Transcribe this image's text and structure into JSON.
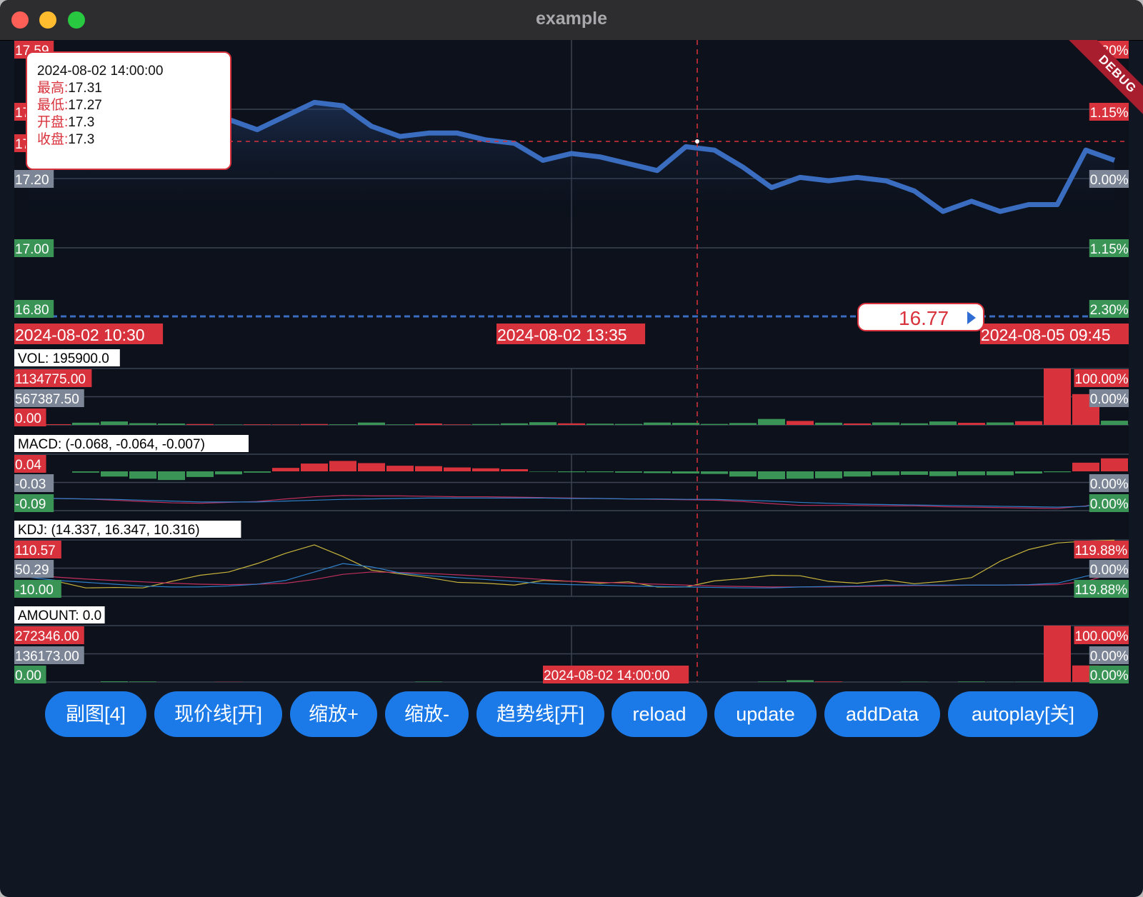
{
  "window": {
    "title": "example"
  },
  "colors": {
    "up": "#d8323c",
    "down": "#3a9456",
    "line": "#3a6cbf",
    "grid": "#3a4353",
    "bg": "#0c111b",
    "gray_label": "#7d8696",
    "k_line": "#c8b43c",
    "d_line": "#c0305e",
    "j_line": "#2f7fc8"
  },
  "main_chart": {
    "price_axis_left": [
      "17.59",
      "17.39",
      "17.30",
      "17.20",
      "17.00",
      "16.80"
    ],
    "percent_axis_right": [
      "2.30%",
      "1.15%",
      "0.00%",
      "1.15%",
      "2.30%"
    ],
    "time_labels": [
      "2024-08-02 10:30",
      "2024-08-02 13:35",
      "2024-08-05 09:45"
    ],
    "current_price": "16.77",
    "prices": [
      17.37,
      17.36,
      17.36,
      17.35,
      17.36,
      17.35,
      17.38,
      17.38,
      17.35,
      17.39,
      17.43,
      17.42,
      17.36,
      17.33,
      17.34,
      17.34,
      17.32,
      17.31,
      17.26,
      17.28,
      17.27,
      17.25,
      17.23,
      17.3,
      17.29,
      17.24,
      17.18,
      17.21,
      17.2,
      17.21,
      17.2,
      17.17,
      17.11,
      17.14,
      17.11,
      17.13,
      17.13,
      17.29,
      17.26
    ],
    "crosshair_price": "17.30"
  },
  "tooltip": {
    "time": "2024-08-02 14:00:00",
    "high_label": "最高:",
    "high": "17.31",
    "low_label": "最低:",
    "low": "17.27",
    "open_label": "开盘:",
    "open": "17.3",
    "close_label": "收盘:",
    "close": "17.3"
  },
  "vol": {
    "header": "VOL: 195900.0",
    "axis_left": [
      "1134775.00",
      "567387.50",
      "0.00"
    ],
    "axis_right": [
      "100.00%",
      "0.00%"
    ],
    "values": [
      30000,
      15000,
      45000,
      70000,
      35000,
      28000,
      18000,
      8000,
      12000,
      10000,
      18000,
      12000,
      48000,
      10000,
      28000,
      10000,
      18000,
      32000,
      55000,
      32000,
      25000,
      20000,
      48000,
      42000,
      20000,
      38000,
      120000,
      80000,
      45000,
      30000,
      50000,
      32000,
      70000,
      42000,
      50000,
      75000,
      1134775,
      620000,
      85000
    ],
    "up": [
      0,
      1,
      0,
      0,
      0,
      0,
      1,
      0,
      1,
      1,
      1,
      0,
      0,
      0,
      1,
      1,
      0,
      0,
      0,
      1,
      0,
      0,
      0,
      0,
      0,
      0,
      0,
      1,
      0,
      1,
      0,
      0,
      0,
      1,
      0,
      1,
      1,
      1,
      0
    ]
  },
  "macd": {
    "header": "MACD: (-0.068, -0.064, -0.007)",
    "axis_left": [
      "0.04",
      "-0.03",
      "-0.09"
    ],
    "axis_right": [
      "0.00%",
      "0.00%"
    ],
    "hist": [
      0.002,
      0,
      -0.003,
      -0.012,
      -0.017,
      -0.02,
      -0.013,
      -0.007,
      -0.003,
      0.008,
      0.018,
      0.024,
      0.019,
      0.013,
      0.012,
      0.009,
      0.007,
      0.005,
      -0.001,
      -0.002,
      -0.002,
      -0.003,
      -0.004,
      -0.005,
      -0.006,
      -0.012,
      -0.018,
      -0.017,
      -0.016,
      -0.012,
      -0.009,
      -0.008,
      -0.011,
      -0.009,
      -0.009,
      -0.005,
      -0.002,
      0.02,
      0.03
    ],
    "dif": [
      -0.062,
      -0.062,
      -0.063,
      -0.066,
      -0.069,
      -0.072,
      -0.073,
      -0.071,
      -0.069,
      -0.063,
      -0.058,
      -0.055,
      -0.056,
      -0.056,
      -0.057,
      -0.058,
      -0.058,
      -0.059,
      -0.06,
      -0.061,
      -0.062,
      -0.063,
      -0.064,
      -0.065,
      -0.066,
      -0.069,
      -0.074,
      -0.078,
      -0.078,
      -0.078,
      -0.079,
      -0.079,
      -0.081,
      -0.082,
      -0.083,
      -0.084,
      -0.085,
      -0.079,
      -0.068
    ],
    "dea": [
      -0.062,
      -0.062,
      -0.063,
      -0.064,
      -0.066,
      -0.068,
      -0.07,
      -0.07,
      -0.07,
      -0.068,
      -0.066,
      -0.064,
      -0.063,
      -0.062,
      -0.061,
      -0.061,
      -0.061,
      -0.061,
      -0.061,
      -0.062,
      -0.062,
      -0.063,
      -0.063,
      -0.064,
      -0.064,
      -0.066,
      -0.068,
      -0.071,
      -0.073,
      -0.075,
      -0.076,
      -0.077,
      -0.078,
      -0.079,
      -0.08,
      -0.081,
      -0.082,
      -0.08,
      -0.064
    ]
  },
  "kdj": {
    "header": "KDJ: (14.337, 16.347, 10.316)",
    "axis_left": [
      "110.57",
      "50.29",
      "-10.00"
    ],
    "axis_right": [
      "119.88%",
      "0.00%",
      "119.88%"
    ],
    "k": [
      31,
      24,
      20,
      16,
      12,
      10,
      10,
      12,
      16,
      24,
      42,
      60,
      53,
      40,
      34,
      30,
      26,
      22,
      17,
      15,
      14,
      12,
      11,
      10,
      9,
      8,
      8,
      10,
      11,
      12,
      14,
      14,
      14,
      14,
      14,
      15,
      18,
      33,
      43
    ],
    "d": [
      36,
      31,
      27,
      24,
      21,
      18,
      16,
      15,
      16,
      18,
      26,
      37,
      42,
      41,
      39,
      36,
      33,
      30,
      26,
      22,
      20,
      18,
      16,
      14,
      12,
      11,
      10,
      10,
      10,
      11,
      12,
      13,
      13,
      14,
      14,
      14,
      15,
      22,
      40
    ],
    "j": [
      20,
      22,
      8,
      9,
      8,
      22,
      35,
      42,
      60,
      82,
      100,
      75,
      46,
      38,
      30,
      20,
      18,
      14,
      24,
      22,
      18,
      21,
      10,
      10,
      23,
      28,
      35,
      34,
      22,
      18,
      25,
      17,
      22,
      30,
      65,
      90,
      104,
      108,
      110
    ]
  },
  "amount": {
    "header": "AMOUNT: 0.0",
    "axis_left": [
      "272346.00",
      "136173.00",
      "0.00"
    ],
    "axis_right": [
      "100.00%",
      "0.00%",
      "0.00%"
    ],
    "crosshair_time": "2024-08-02 14:00:00",
    "values": [
      0,
      0,
      0,
      3500,
      2500,
      0,
      0,
      800,
      0,
      0,
      0,
      0,
      0,
      0,
      2000,
      0,
      0,
      0,
      0,
      0,
      0,
      0,
      0,
      0,
      0,
      0,
      2500,
      9000,
      2500,
      0,
      0,
      1500,
      0,
      2500,
      1000,
      1500,
      272346,
      80000,
      0
    ],
    "up": [
      0,
      0,
      0,
      0,
      0,
      0,
      0,
      1,
      0,
      0,
      0,
      0,
      0,
      0,
      0,
      0,
      0,
      0,
      0,
      0,
      0,
      0,
      0,
      0,
      0,
      0,
      0,
      0,
      1,
      0,
      0,
      0,
      0,
      0,
      0,
      0,
      1,
      1,
      0
    ]
  },
  "buttons": [
    "副图[4]",
    "现价线[开]",
    "缩放+",
    "缩放-",
    "趋势线[开]",
    "reload",
    "update",
    "addData",
    "autoplay[关]"
  ],
  "debug_banner": "DEBUG"
}
